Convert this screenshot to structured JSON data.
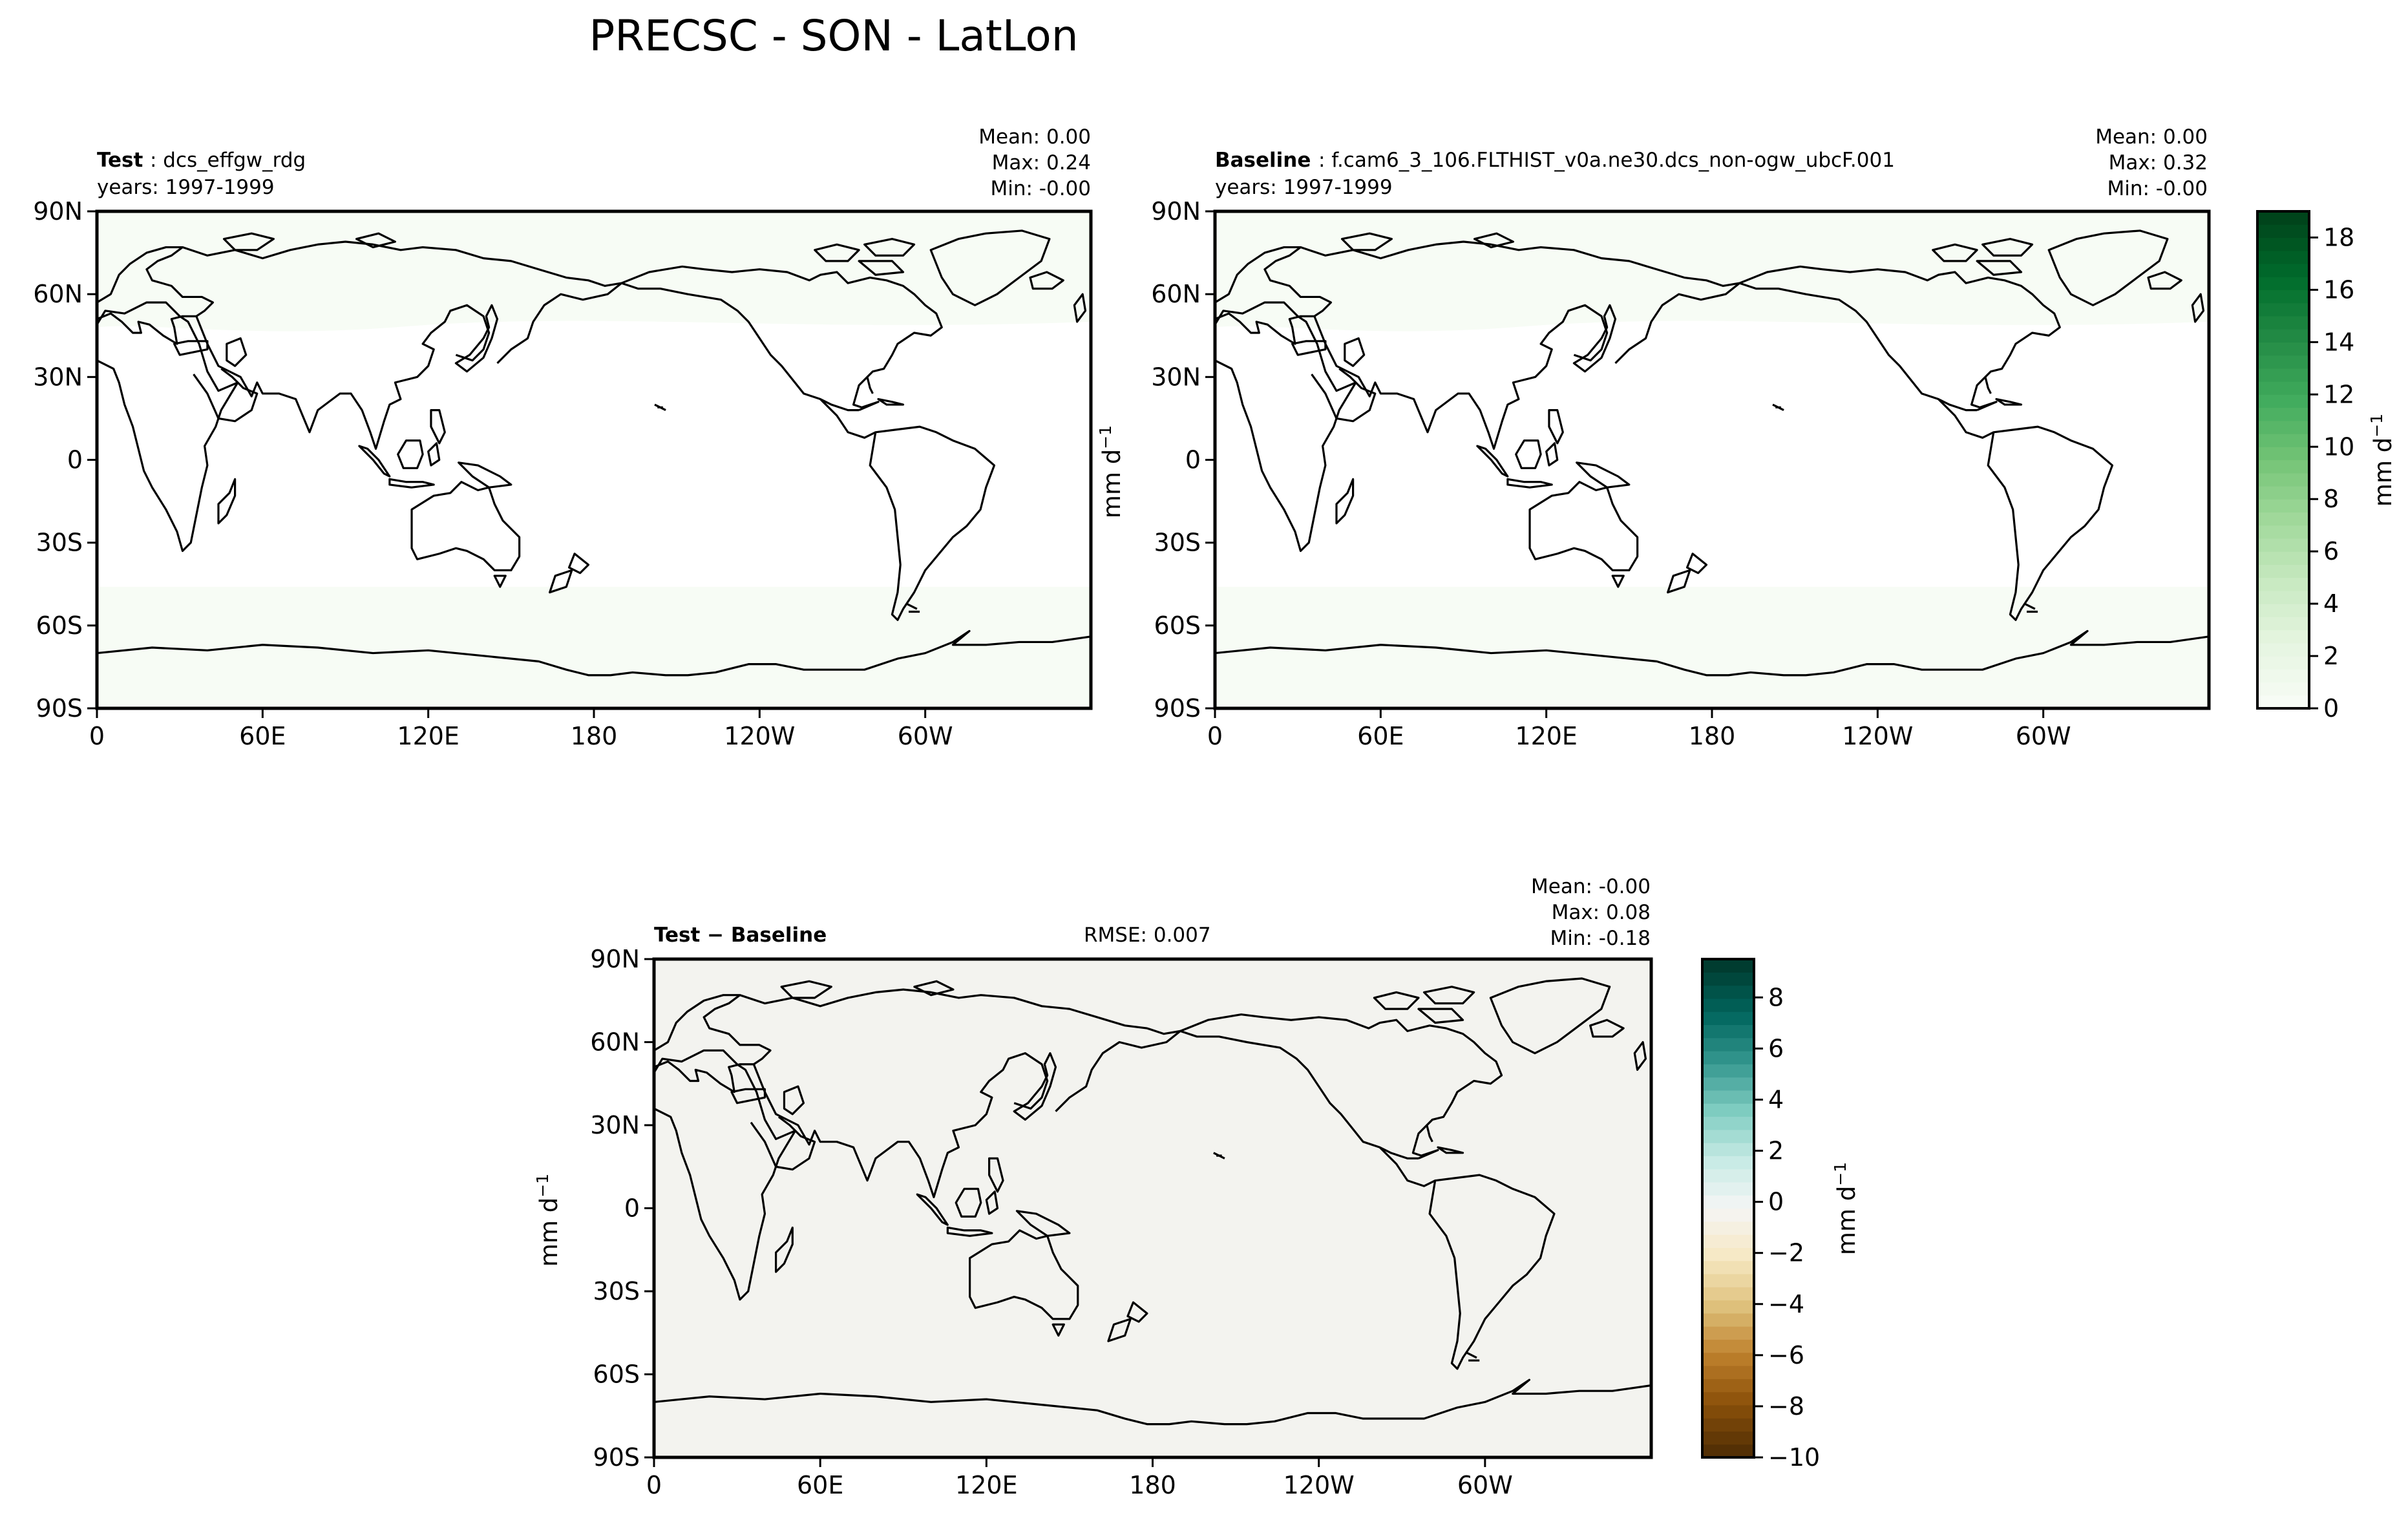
{
  "figure": {
    "title": "PRECSC - SON - LatLon"
  },
  "axes": {
    "lon_ticks": [
      "0",
      "60E",
      "120E",
      "180",
      "120W",
      "60W"
    ],
    "lat_ticks": [
      "90N",
      "60N",
      "30N",
      "0",
      "30S",
      "60S",
      "90S"
    ],
    "units_label": "mm d",
    "units_exp": "−1"
  },
  "panels": {
    "test": {
      "label_bold": "Test",
      "label_rest": ": dcs_effgw_rdg",
      "years": "years: 1997-1999",
      "mean": "Mean:  0.00",
      "max": "Max:  0.24",
      "min": "Min: -0.00"
    },
    "baseline": {
      "label_bold": "Baseline",
      "label_rest": ": f.cam6_3_106.FLTHIST_v0a.ne30.dcs_non-ogw_ubcF.001",
      "years": "years: 1997-1999",
      "mean": "Mean:  0.00",
      "max": "Max:  0.32",
      "min": "Min: -0.00"
    },
    "diff": {
      "label_bold": "Test − Baseline",
      "rmse": "RMSE: 0.007",
      "mean": "Mean: -0.00",
      "max": "Max:  0.08",
      "min": "Min: -0.18"
    }
  },
  "colorbars": {
    "main": {
      "ticks": [
        "0",
        "2",
        "4",
        "6",
        "8",
        "10",
        "12",
        "14",
        "16",
        "18"
      ],
      "tick_values": [
        0,
        2,
        4,
        6,
        8,
        10,
        12,
        14,
        16,
        18
      ],
      "range": [
        0,
        19
      ],
      "colors": [
        "#f7fcf5",
        "#e5f5e0",
        "#c7e9c0",
        "#a1d99b",
        "#74c476",
        "#41ab5d",
        "#238b45",
        "#006d2c",
        "#00441b"
      ]
    },
    "diff": {
      "ticks": [
        "8",
        "6",
        "4",
        "2",
        "0",
        "−2",
        "−4",
        "−6",
        "−8",
        "−10"
      ],
      "tick_values": [
        8,
        6,
        4,
        2,
        0,
        -2,
        -4,
        -6,
        -8,
        -10
      ],
      "range": [
        -10,
        9.5
      ],
      "colors": [
        "#543005",
        "#8c510a",
        "#bf812d",
        "#dfc27d",
        "#f6e8c3",
        "#f5f5f5",
        "#c7eae5",
        "#80cdc1",
        "#35978f",
        "#01665e",
        "#003c30"
      ]
    }
  },
  "map_colors": {
    "test_land": "#f7fcf5",
    "test_ocean": "#ffffff",
    "diff_fill": "#f3f3ef",
    "coast": "#000000"
  }
}
